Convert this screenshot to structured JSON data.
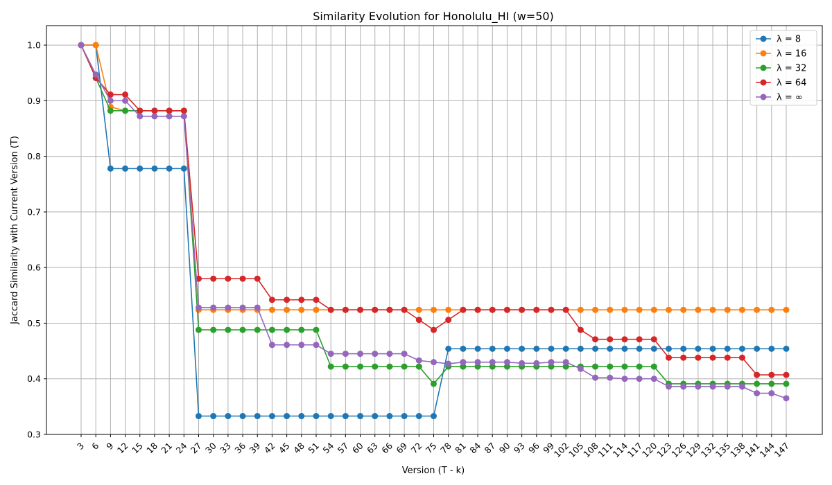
{
  "chart_data": {
    "type": "line",
    "title": "Similarity Evolution for Honolulu_HI (w=50)",
    "xlabel": "Version (T - k)",
    "ylabel": "Jaccard Similarity with Current Version (T)",
    "ylim": [
      0.3,
      1.035
    ],
    "yticks": [
      0.3,
      0.4,
      0.5,
      0.6,
      0.7,
      0.8,
      0.9,
      1.0
    ],
    "ytick_labels": [
      "0.3",
      "0.4",
      "0.5",
      "0.6",
      "0.7",
      "0.8",
      "0.9",
      "1.0"
    ],
    "grid": true,
    "legend_position": "top-right",
    "x": [
      3,
      6,
      9,
      12,
      15,
      18,
      21,
      24,
      27,
      30,
      33,
      36,
      39,
      42,
      45,
      48,
      51,
      54,
      57,
      60,
      63,
      66,
      69,
      72,
      75,
      78,
      81,
      84,
      87,
      90,
      93,
      96,
      99,
      102,
      105,
      108,
      111,
      114,
      117,
      120,
      123,
      126,
      129,
      132,
      135,
      138,
      141,
      144,
      147
    ],
    "series": [
      {
        "name": "λ = 8",
        "color": "#1f77b4",
        "values": [
          1.0,
          1.0,
          0.778,
          0.778,
          0.778,
          0.778,
          0.778,
          0.778,
          0.333,
          0.333,
          0.333,
          0.333,
          0.333,
          0.333,
          0.333,
          0.333,
          0.333,
          0.333,
          0.333,
          0.333,
          0.333,
          0.333,
          0.333,
          0.333,
          0.333,
          0.454,
          0.454,
          0.454,
          0.454,
          0.454,
          0.454,
          0.454,
          0.454,
          0.454,
          0.454,
          0.454,
          0.454,
          0.454,
          0.454,
          0.454,
          0.454,
          0.454,
          0.454,
          0.454,
          0.454,
          0.454,
          0.454,
          0.454,
          0.454
        ]
      },
      {
        "name": "λ = 16",
        "color": "#ff7f0e",
        "values": [
          1.0,
          1.0,
          0.889,
          0.882,
          0.882,
          0.882,
          0.882,
          0.882,
          0.524,
          0.524,
          0.524,
          0.524,
          0.524,
          0.524,
          0.524,
          0.524,
          0.524,
          0.524,
          0.524,
          0.524,
          0.524,
          0.524,
          0.524,
          0.524,
          0.524,
          0.524,
          0.524,
          0.524,
          0.524,
          0.524,
          0.524,
          0.524,
          0.524,
          0.524,
          0.524,
          0.524,
          0.524,
          0.524,
          0.524,
          0.524,
          0.524,
          0.524,
          0.524,
          0.524,
          0.524,
          0.524,
          0.524,
          0.524,
          0.524
        ]
      },
      {
        "name": "λ = 32",
        "color": "#2ca02c",
        "values": [
          1.0,
          0.941,
          0.882,
          0.882,
          0.882,
          0.882,
          0.882,
          0.882,
          0.488,
          0.488,
          0.488,
          0.488,
          0.488,
          0.488,
          0.488,
          0.488,
          0.488,
          0.422,
          0.422,
          0.422,
          0.422,
          0.422,
          0.422,
          0.422,
          0.391,
          0.422,
          0.422,
          0.422,
          0.422,
          0.422,
          0.422,
          0.422,
          0.422,
          0.422,
          0.422,
          0.422,
          0.422,
          0.422,
          0.422,
          0.422,
          0.391,
          0.391,
          0.391,
          0.391,
          0.391,
          0.391,
          0.391,
          0.391,
          0.391
        ]
      },
      {
        "name": "λ = 64",
        "color": "#d62728",
        "values": [
          1.0,
          0.941,
          0.911,
          0.911,
          0.882,
          0.882,
          0.882,
          0.882,
          0.58,
          0.58,
          0.58,
          0.58,
          0.58,
          0.542,
          0.542,
          0.542,
          0.542,
          0.524,
          0.524,
          0.524,
          0.524,
          0.524,
          0.524,
          0.506,
          0.488,
          0.506,
          0.524,
          0.524,
          0.524,
          0.524,
          0.524,
          0.524,
          0.524,
          0.524,
          0.488,
          0.471,
          0.471,
          0.471,
          0.471,
          0.471,
          0.438,
          0.438,
          0.438,
          0.438,
          0.438,
          0.438,
          0.407,
          0.407,
          0.407
        ]
      },
      {
        "name": "λ = ∞",
        "color": "#9467bd",
        "values": [
          1.0,
          0.947,
          0.9,
          0.9,
          0.872,
          0.872,
          0.872,
          0.872,
          0.528,
          0.528,
          0.528,
          0.528,
          0.528,
          0.461,
          0.461,
          0.461,
          0.461,
          0.445,
          0.445,
          0.445,
          0.445,
          0.445,
          0.445,
          0.433,
          0.43,
          0.427,
          0.43,
          0.43,
          0.43,
          0.43,
          0.428,
          0.428,
          0.43,
          0.43,
          0.418,
          0.402,
          0.402,
          0.4,
          0.4,
          0.4,
          0.386,
          0.386,
          0.386,
          0.386,
          0.386,
          0.386,
          0.374,
          0.374,
          0.365
        ]
      }
    ]
  }
}
